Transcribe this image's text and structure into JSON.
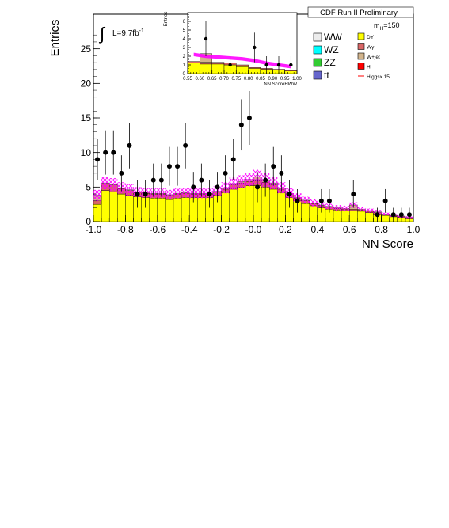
{
  "colors": {
    "dy": "#ffff00",
    "wgamma": "#d96666",
    "wjet": "#d2b48c",
    "ww": "#ececec",
    "wz": "#00ffff",
    "zz": "#33cc33",
    "ttbar": "#6666cc",
    "higgs": "#ff0000",
    "band": "#ff00ff"
  },
  "chart_data": [
    {
      "type": "bar",
      "xlabel": "NN Score",
      "ylabel": "Entries",
      "xlim": [
        -1.0,
        1.0
      ],
      "ylim": [
        0,
        30
      ],
      "xticks": [
        "-1.0",
        "-0.8",
        "-0.6",
        "-0.4",
        "-0.2",
        "-0.0",
        "0.2",
        "0.4",
        "0.6",
        "0.8",
        "1.0"
      ],
      "yticks": [
        "0",
        "5",
        "10",
        "15",
        "20",
        "25"
      ],
      "annotations": {
        "luminosity": "L=9.7fb",
        "luminosity_sup": "-1",
        "integral_symbol": "∫",
        "experiment": "CDF Run II Preliminary",
        "mass_main": "m",
        "mass_sub": "H",
        "mass_value": "=150"
      },
      "legend_placement": "top-right",
      "legend_left": [
        {
          "name": "WW",
          "color_key": "ww"
        },
        {
          "name": "WZ",
          "color_key": "wz"
        },
        {
          "name": "ZZ",
          "color_key": "zz"
        },
        {
          "name": "tt",
          "color_key": "ttbar"
        }
      ],
      "legend_right": [
        {
          "name": "DY",
          "color_key": "dy"
        },
        {
          "name": "Wγ",
          "color_key": "wgamma"
        },
        {
          "name": "W+jet",
          "color_key": "wjet"
        },
        {
          "name": "H",
          "color_key": "higgs"
        },
        {
          "name": "Higgsx 15",
          "color_key": "higgs"
        }
      ],
      "bin_edges": [
        -1.0,
        -0.95,
        -0.9,
        -0.85,
        -0.8,
        -0.75,
        -0.7,
        -0.65,
        -0.6,
        -0.55,
        -0.5,
        -0.45,
        -0.4,
        -0.35,
        -0.3,
        -0.25,
        -0.2,
        -0.15,
        -0.1,
        -0.05,
        0.0,
        0.05,
        0.1,
        0.15,
        0.2,
        0.25,
        0.3,
        0.35,
        0.4,
        0.45,
        0.5,
        0.55,
        0.6,
        0.65,
        0.7,
        0.75,
        0.8,
        0.85,
        0.9,
        0.95,
        1.0
      ],
      "stack": [
        {
          "name": "DY",
          "color_key": "dy",
          "values": [
            2.5,
            4.5,
            4.3,
            4.0,
            3.8,
            3.6,
            3.5,
            3.4,
            3.4,
            3.2,
            3.4,
            3.5,
            3.5,
            3.5,
            3.5,
            3.8,
            4.2,
            4.7,
            5.0,
            5.2,
            5.2,
            5.0,
            4.7,
            4.2,
            3.5,
            3.0,
            2.6,
            2.3,
            2.0,
            1.8,
            1.7,
            1.6,
            1.6,
            1.5,
            1.3,
            1.1,
            0.9,
            0.7,
            0.6,
            0.4
          ]
        },
        {
          "name": "Wγ",
          "color_key": "wgamma",
          "values": [
            0.5,
            1.0,
            1.0,
            0.8,
            0.7,
            0.6,
            0.6,
            0.6,
            0.6,
            0.6,
            0.6,
            0.6,
            0.5,
            0.5,
            0.5,
            0.5,
            0.5,
            0.6,
            0.6,
            0.6,
            0.7,
            0.7,
            0.6,
            0.5,
            0.5,
            0.4,
            0.4,
            0.3,
            0.3,
            0.3,
            0.2,
            0.2,
            0.2,
            0.2,
            0.2,
            0.2,
            0.1,
            0.1,
            0.1,
            0.1
          ]
        },
        {
          "name": "W+jet",
          "color_key": "wjet",
          "values": [
            0.8,
            0.1,
            0.1,
            0.1,
            0.1,
            0.1,
            0.1,
            0.1,
            0.1,
            0.1,
            0.1,
            0.1,
            0.1,
            0.1,
            0.1,
            0.1,
            0.2,
            0.2,
            0.2,
            0.3,
            0.6,
            0.3,
            0.3,
            0.2,
            0.1,
            0.1,
            0.1,
            0.1,
            0.1,
            0.1,
            0.1,
            0.1,
            0.6,
            0.1,
            0.1,
            0.1,
            0.1,
            0.1,
            0.1,
            0.1
          ]
        }
      ],
      "band_total": [
        3.8,
        5.6,
        5.4,
        4.9,
        4.6,
        4.3,
        4.2,
        4.1,
        4.1,
        3.9,
        4.1,
        4.2,
        4.1,
        4.1,
        4.1,
        4.4,
        4.9,
        5.5,
        5.8,
        6.1,
        6.5,
        6.0,
        5.6,
        4.9,
        4.1,
        3.5,
        3.1,
        2.7,
        2.4,
        2.2,
        2.0,
        1.9,
        2.4,
        1.8,
        1.6,
        1.4,
        1.1,
        0.9,
        0.8,
        0.6
      ],
      "band_error": [
        0.8,
        0.9,
        0.9,
        0.8,
        0.8,
        0.7,
        0.7,
        0.7,
        0.7,
        0.7,
        0.7,
        0.7,
        0.7,
        0.7,
        0.7,
        0.7,
        0.8,
        0.9,
        0.9,
        1.0,
        1.0,
        1.0,
        0.9,
        0.8,
        0.7,
        0.6,
        0.5,
        0.5,
        0.4,
        0.4,
        0.4,
        0.4,
        0.4,
        0.3,
        0.3,
        0.3,
        0.2,
        0.2,
        0.2,
        0.2
      ],
      "points": {
        "x": [
          -0.975,
          -0.925,
          -0.875,
          -0.825,
          -0.775,
          -0.725,
          -0.675,
          -0.625,
          -0.575,
          -0.525,
          -0.475,
          -0.425,
          -0.375,
          -0.325,
          -0.275,
          -0.225,
          -0.175,
          -0.125,
          -0.075,
          -0.025,
          0.025,
          0.075,
          0.125,
          0.175,
          0.225,
          0.275,
          0.325,
          0.375,
          0.425,
          0.475,
          0.525,
          0.575,
          0.625,
          0.675,
          0.725,
          0.775,
          0.825,
          0.875,
          0.925,
          0.975
        ],
        "y": [
          9,
          10,
          10,
          7,
          11,
          4,
          4,
          6,
          6,
          8,
          8,
          11,
          5,
          6,
          4,
          5,
          7,
          9,
          14,
          15,
          5,
          6,
          8,
          7,
          4,
          3,
          0,
          0,
          3,
          3,
          0,
          0,
          4,
          0,
          0,
          1,
          3,
          1,
          1,
          1
        ],
        "err": [
          3.0,
          3.2,
          3.2,
          2.6,
          3.3,
          2.0,
          2.0,
          2.4,
          2.4,
          2.8,
          2.8,
          3.3,
          2.2,
          2.4,
          2.0,
          2.2,
          2.6,
          3.0,
          3.7,
          3.9,
          2.2,
          2.4,
          2.8,
          2.6,
          2.0,
          1.7,
          0,
          0,
          1.7,
          1.7,
          0,
          0,
          2.0,
          0,
          0,
          1.0,
          1.7,
          1.0,
          1.0,
          1.0
        ]
      }
    },
    {
      "type": "bar",
      "xlabel": "NN ScoreHWW",
      "ylabel": "Entries",
      "xlim": [
        0.55,
        1.0
      ],
      "ylim": [
        0,
        7
      ],
      "xticks": [
        "0.55",
        "0.60",
        "0.65",
        "0.70",
        "0.75",
        "0.80",
        "0.85",
        "0.90",
        "0.95",
        "1.00"
      ],
      "yticks": [
        "0",
        "1",
        "2",
        "3",
        "4",
        "5",
        "6"
      ],
      "bin_edges": [
        0.55,
        0.6,
        0.65,
        0.7,
        0.75,
        0.8,
        0.85,
        0.9,
        0.95,
        1.0
      ],
      "stack": [
        {
          "name": "DY",
          "color_key": "dy",
          "values": [
            1.2,
            1.1,
            1.1,
            1.0,
            0.8,
            0.6,
            0.5,
            0.4,
            0.3
          ]
        },
        {
          "name": "Wγ",
          "color_key": "wgamma",
          "values": [
            0.2,
            0.2,
            0.2,
            0.2,
            0.2,
            0.1,
            0.1,
            0.1,
            0.1
          ]
        },
        {
          "name": "W+jet",
          "color_key": "wjet",
          "values": [
            0.0,
            1.0,
            0.0,
            0.0,
            0.0,
            0.0,
            0.0,
            0.0,
            0.0
          ]
        }
      ],
      "band": {
        "x": [
          0.575,
          0.625,
          0.675,
          0.725,
          0.775,
          0.825,
          0.875,
          0.925,
          0.975
        ],
        "y": [
          2.2,
          2.0,
          1.9,
          1.8,
          1.7,
          1.5,
          1.2,
          1.0,
          0.8
        ],
        "err": [
          0.2,
          0.2,
          0.2,
          0.2,
          0.2,
          0.2,
          0.2,
          0.2,
          0.2
        ]
      },
      "points": {
        "x": [
          0.625,
          0.725,
          0.825,
          0.875,
          0.925,
          0.975
        ],
        "y": [
          4,
          1,
          3,
          1,
          1,
          1
        ],
        "err": [
          2.0,
          1.0,
          1.7,
          1.0,
          1.0,
          1.0
        ]
      }
    }
  ]
}
